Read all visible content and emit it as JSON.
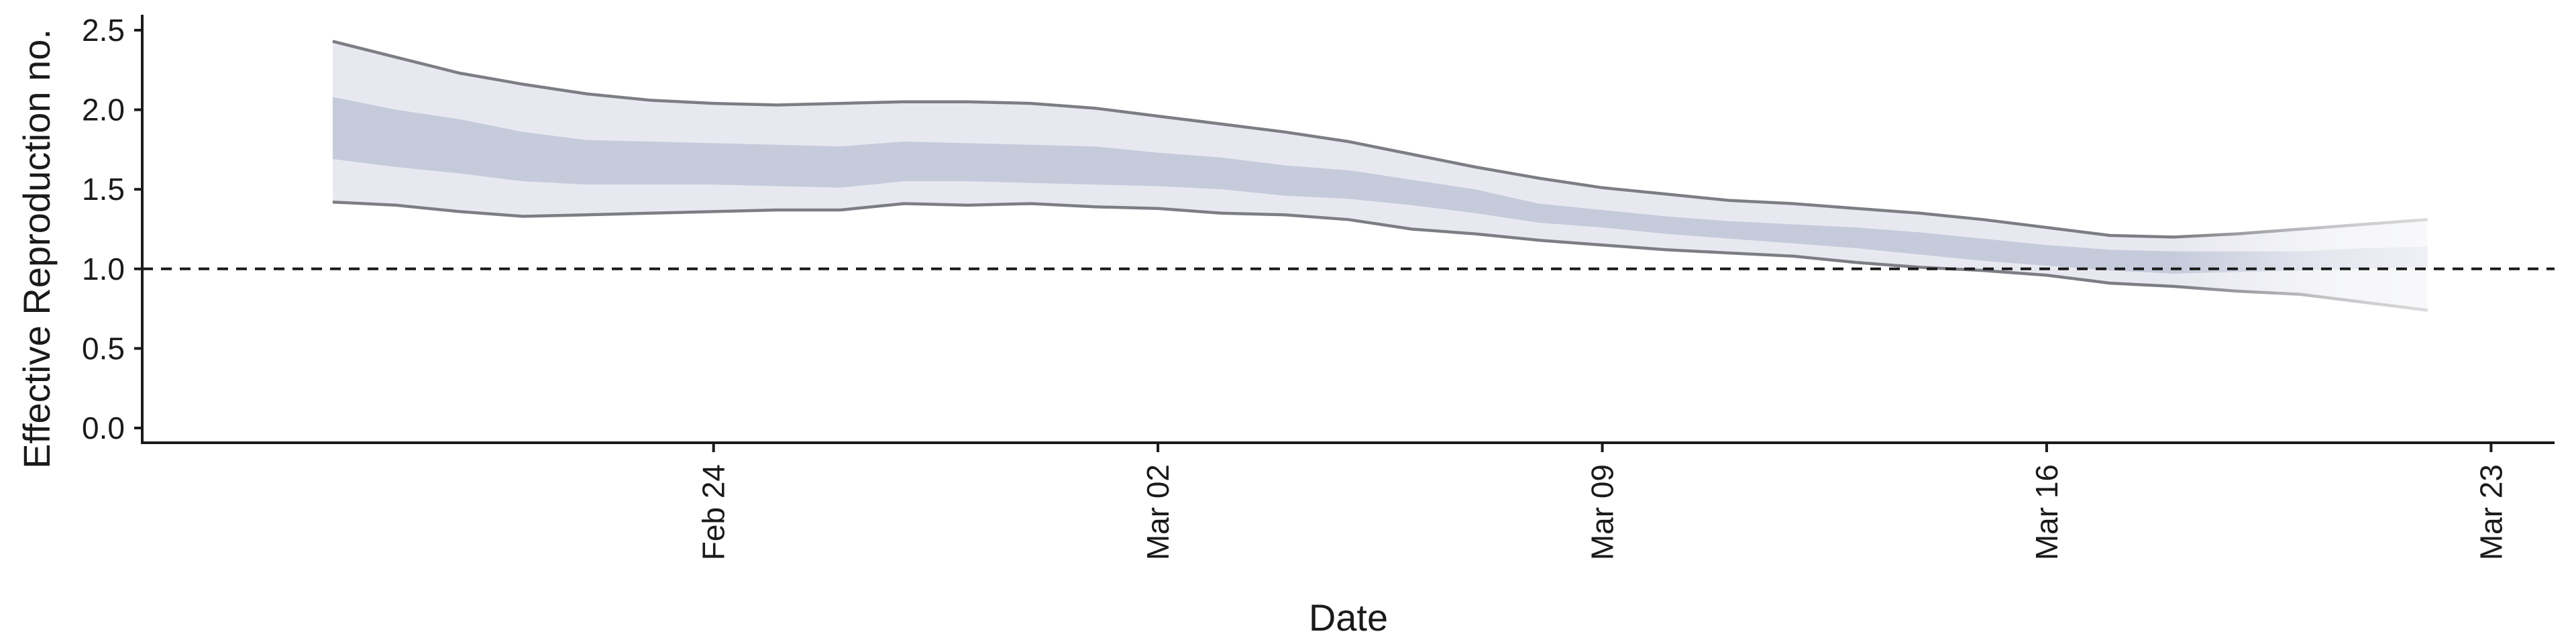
{
  "chart_data": {
    "type": "area",
    "xlabel": "Date",
    "ylabel": "Effective Reproduction no.",
    "ylim": [
      0,
      2.5
    ],
    "xlim": [
      "2020-02-15",
      "2020-03-24"
    ],
    "x_ticks": [
      {
        "date": "2020-02-24",
        "label": "Feb 24"
      },
      {
        "date": "2020-03-02",
        "label": "Mar 02"
      },
      {
        "date": "2020-03-09",
        "label": "Mar 09"
      },
      {
        "date": "2020-03-16",
        "label": "Mar 16"
      },
      {
        "date": "2020-03-23",
        "label": "Mar 23"
      }
    ],
    "y_ticks": [
      0.0,
      0.5,
      1.0,
      1.5,
      2.0,
      2.5
    ],
    "y_tick_labels": [
      "0.0",
      "0.5",
      "1.0",
      "1.5",
      "2.0",
      "2.5"
    ],
    "reference_line": {
      "y": 1.0,
      "style": "dashed"
    },
    "grid": false,
    "legend": "none",
    "x": [
      "2020-02-18",
      "2020-02-19",
      "2020-02-20",
      "2020-02-21",
      "2020-02-22",
      "2020-02-23",
      "2020-02-24",
      "2020-02-25",
      "2020-02-26",
      "2020-02-27",
      "2020-02-28",
      "2020-02-29",
      "2020-03-01",
      "2020-03-02",
      "2020-03-03",
      "2020-03-04",
      "2020-03-05",
      "2020-03-06",
      "2020-03-07",
      "2020-03-08",
      "2020-03-09",
      "2020-03-10",
      "2020-03-11",
      "2020-03-12",
      "2020-03-13",
      "2020-03-14",
      "2020-03-15",
      "2020-03-16",
      "2020-03-17",
      "2020-03-18",
      "2020-03-19",
      "2020-03-20",
      "2020-03-21",
      "2020-03-22"
    ],
    "series": [
      {
        "values_upper_90": [
          2.43,
          2.33,
          2.23,
          2.16,
          2.1,
          2.06,
          2.04,
          2.03,
          2.04,
          2.05,
          2.05,
          2.04,
          2.01,
          1.96,
          1.91,
          1.86,
          1.8,
          1.72,
          1.64,
          1.57,
          1.51,
          1.47,
          1.43,
          1.41,
          1.38,
          1.35,
          1.31,
          1.26,
          1.21,
          1.2,
          1.22,
          1.25,
          1.28,
          1.31
        ],
        "values_upper_50": [
          2.08,
          2.0,
          1.94,
          1.86,
          1.81,
          1.8,
          1.79,
          1.78,
          1.77,
          1.8,
          1.79,
          1.78,
          1.77,
          1.73,
          1.7,
          1.65,
          1.62,
          1.56,
          1.5,
          1.41,
          1.37,
          1.33,
          1.3,
          1.28,
          1.26,
          1.23,
          1.19,
          1.15,
          1.12,
          1.11,
          1.11,
          1.11,
          1.13,
          1.14
        ],
        "values_lower_50": [
          1.69,
          1.64,
          1.6,
          1.55,
          1.53,
          1.53,
          1.53,
          1.52,
          1.51,
          1.55,
          1.55,
          1.54,
          1.53,
          1.52,
          1.5,
          1.46,
          1.44,
          1.4,
          1.35,
          1.29,
          1.26,
          1.22,
          1.19,
          1.16,
          1.13,
          1.09,
          1.05,
          1.02,
          0.99,
          0.97,
          0.98,
          0.99,
          1.0,
          1.01
        ],
        "values_lower_90": [
          1.42,
          1.4,
          1.36,
          1.33,
          1.34,
          1.35,
          1.36,
          1.37,
          1.37,
          1.41,
          1.4,
          1.41,
          1.39,
          1.38,
          1.35,
          1.34,
          1.31,
          1.25,
          1.22,
          1.18,
          1.15,
          1.12,
          1.1,
          1.08,
          1.04,
          1.01,
          0.99,
          0.96,
          0.91,
          0.89,
          0.86,
          0.84,
          0.79,
          0.74
        ]
      }
    ],
    "colors": {
      "band_90": "#e8e9f0",
      "band_50": "#c6cbdc",
      "bound_line": "#7d7d85",
      "axis": "#1a1a1a"
    }
  }
}
